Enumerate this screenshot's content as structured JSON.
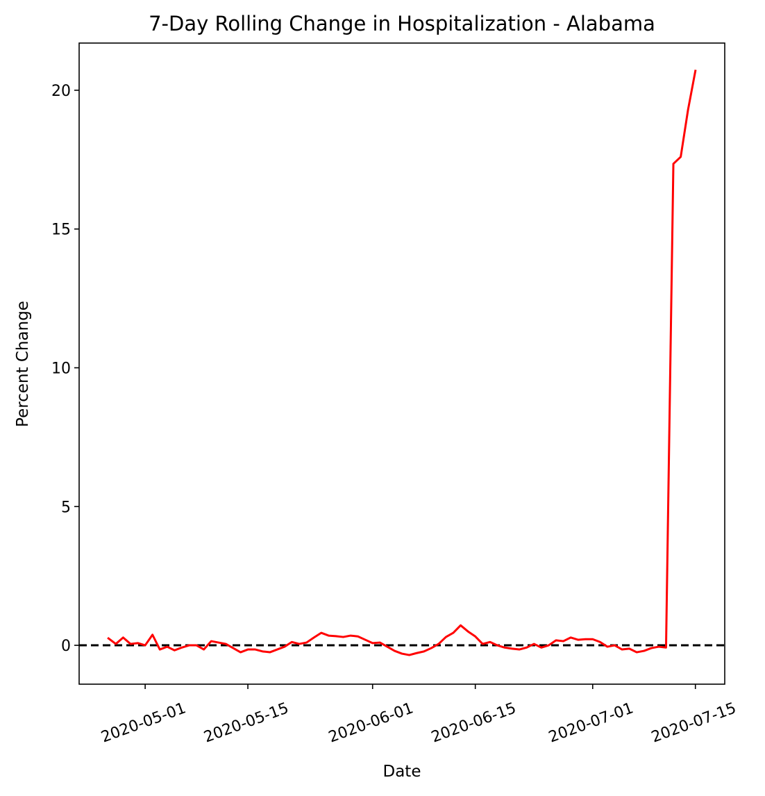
{
  "chart_data": {
    "type": "line",
    "title": "7-Day Rolling Change in Hospitalization - Alabama",
    "xlabel": "Date",
    "ylabel": "Percent Change",
    "xlim": [
      "2020-04-22",
      "2020-07-19"
    ],
    "ylim": [
      -1.4,
      21.7
    ],
    "x_ticks": [
      "2020-05-01",
      "2020-05-15",
      "2020-06-01",
      "2020-06-15",
      "2020-07-01",
      "2020-07-15"
    ],
    "y_ticks": [
      0,
      5,
      10,
      15,
      20
    ],
    "grid": false,
    "legend": "none",
    "reference_line": {
      "y": 0,
      "style": "dashed",
      "color": "#000000"
    },
    "series": [
      {
        "color": "#ff0000",
        "points": [
          {
            "x": "2020-04-26",
            "y": 0.25
          },
          {
            "x": "2020-04-27",
            "y": 0.05
          },
          {
            "x": "2020-04-28",
            "y": 0.28
          },
          {
            "x": "2020-04-29",
            "y": 0.05
          },
          {
            "x": "2020-04-30",
            "y": 0.08
          },
          {
            "x": "2020-05-01",
            "y": 0.0
          },
          {
            "x": "2020-05-02",
            "y": 0.38
          },
          {
            "x": "2020-05-03",
            "y": -0.15
          },
          {
            "x": "2020-05-04",
            "y": -0.05
          },
          {
            "x": "2020-05-05",
            "y": -0.18
          },
          {
            "x": "2020-05-06",
            "y": -0.08
          },
          {
            "x": "2020-05-07",
            "y": 0.0
          },
          {
            "x": "2020-05-08",
            "y": 0.0
          },
          {
            "x": "2020-05-09",
            "y": -0.15
          },
          {
            "x": "2020-05-10",
            "y": 0.15
          },
          {
            "x": "2020-05-11",
            "y": 0.1
          },
          {
            "x": "2020-05-12",
            "y": 0.05
          },
          {
            "x": "2020-05-13",
            "y": -0.1
          },
          {
            "x": "2020-05-14",
            "y": -0.25
          },
          {
            "x": "2020-05-15",
            "y": -0.15
          },
          {
            "x": "2020-05-16",
            "y": -0.15
          },
          {
            "x": "2020-05-17",
            "y": -0.22
          },
          {
            "x": "2020-05-18",
            "y": -0.25
          },
          {
            "x": "2020-05-19",
            "y": -0.15
          },
          {
            "x": "2020-05-20",
            "y": -0.05
          },
          {
            "x": "2020-05-21",
            "y": 0.12
          },
          {
            "x": "2020-05-22",
            "y": 0.05
          },
          {
            "x": "2020-05-23",
            "y": 0.1
          },
          {
            "x": "2020-05-24",
            "y": 0.28
          },
          {
            "x": "2020-05-25",
            "y": 0.45
          },
          {
            "x": "2020-05-26",
            "y": 0.35
          },
          {
            "x": "2020-05-27",
            "y": 0.33
          },
          {
            "x": "2020-05-28",
            "y": 0.3
          },
          {
            "x": "2020-05-29",
            "y": 0.35
          },
          {
            "x": "2020-05-30",
            "y": 0.32
          },
          {
            "x": "2020-05-31",
            "y": 0.2
          },
          {
            "x": "2020-06-01",
            "y": 0.08
          },
          {
            "x": "2020-06-02",
            "y": 0.1
          },
          {
            "x": "2020-06-03",
            "y": -0.05
          },
          {
            "x": "2020-06-04",
            "y": -0.2
          },
          {
            "x": "2020-06-05",
            "y": -0.3
          },
          {
            "x": "2020-06-06",
            "y": -0.35
          },
          {
            "x": "2020-06-07",
            "y": -0.28
          },
          {
            "x": "2020-06-08",
            "y": -0.22
          },
          {
            "x": "2020-06-09",
            "y": -0.1
          },
          {
            "x": "2020-06-10",
            "y": 0.05
          },
          {
            "x": "2020-06-11",
            "y": 0.3
          },
          {
            "x": "2020-06-12",
            "y": 0.45
          },
          {
            "x": "2020-06-13",
            "y": 0.72
          },
          {
            "x": "2020-06-14",
            "y": 0.5
          },
          {
            "x": "2020-06-15",
            "y": 0.32
          },
          {
            "x": "2020-06-16",
            "y": 0.05
          },
          {
            "x": "2020-06-17",
            "y": 0.12
          },
          {
            "x": "2020-06-18",
            "y": 0.0
          },
          {
            "x": "2020-06-19",
            "y": -0.08
          },
          {
            "x": "2020-06-20",
            "y": -0.12
          },
          {
            "x": "2020-06-21",
            "y": -0.15
          },
          {
            "x": "2020-06-22",
            "y": -0.08
          },
          {
            "x": "2020-06-23",
            "y": 0.05
          },
          {
            "x": "2020-06-24",
            "y": -0.08
          },
          {
            "x": "2020-06-25",
            "y": 0.0
          },
          {
            "x": "2020-06-26",
            "y": 0.18
          },
          {
            "x": "2020-06-27",
            "y": 0.15
          },
          {
            "x": "2020-06-28",
            "y": 0.28
          },
          {
            "x": "2020-06-29",
            "y": 0.2
          },
          {
            "x": "2020-06-30",
            "y": 0.22
          },
          {
            "x": "2020-07-01",
            "y": 0.22
          },
          {
            "x": "2020-07-02",
            "y": 0.12
          },
          {
            "x": "2020-07-03",
            "y": -0.05
          },
          {
            "x": "2020-07-04",
            "y": 0.0
          },
          {
            "x": "2020-07-05",
            "y": -0.15
          },
          {
            "x": "2020-07-06",
            "y": -0.12
          },
          {
            "x": "2020-07-07",
            "y": -0.25
          },
          {
            "x": "2020-07-08",
            "y": -0.2
          },
          {
            "x": "2020-07-09",
            "y": -0.1
          },
          {
            "x": "2020-07-10",
            "y": -0.05
          },
          {
            "x": "2020-07-11",
            "y": -0.08
          },
          {
            "x": "2020-07-12",
            "y": 17.35
          },
          {
            "x": "2020-07-13",
            "y": 17.6
          },
          {
            "x": "2020-07-14",
            "y": 19.3
          },
          {
            "x": "2020-07-15",
            "y": 20.7
          }
        ]
      }
    ]
  }
}
